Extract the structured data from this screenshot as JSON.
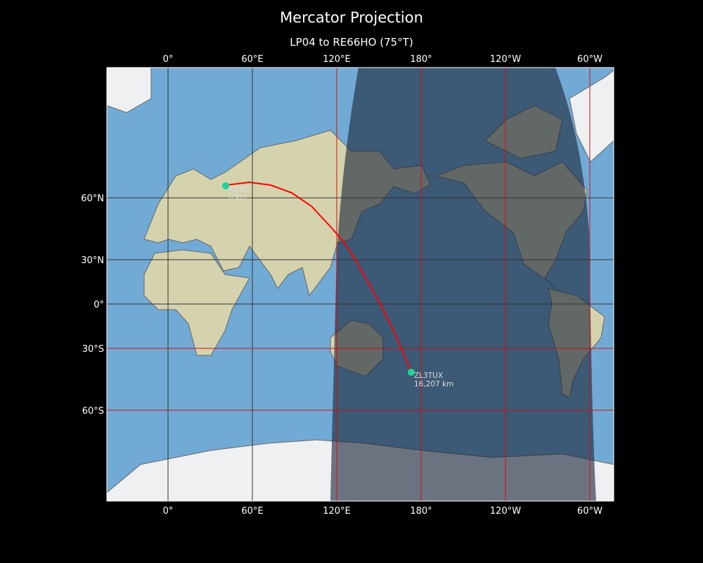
{
  "figure": {
    "title": "Mercator Projection",
    "subtitle": "LP04 to RE66HO (75°T)"
  },
  "map": {
    "projection": "Mercator",
    "central_longitude": 137,
    "longitude_ticks": [
      {
        "lon": 0,
        "label": "0°"
      },
      {
        "lon": 60,
        "label": "60°E"
      },
      {
        "lon": 120,
        "label": "120°E"
      },
      {
        "lon": 180,
        "label": "180°"
      },
      {
        "lon": 240,
        "label": "120°W"
      },
      {
        "lon": 300,
        "label": "60°W"
      }
    ],
    "latitude_ticks": [
      {
        "lat": 60,
        "label": "60°N"
      },
      {
        "lat": 30,
        "label": "30°N"
      },
      {
        "lat": 0,
        "label": "0°"
      },
      {
        "lat": -30,
        "label": "30°S"
      },
      {
        "lat": -60,
        "label": "60°S"
      }
    ],
    "night_shading": true,
    "colors": {
      "path": "#ff0000",
      "station": "#1fd39a",
      "ocean": "#72aad6",
      "grid_day": "#333333",
      "grid_night": "#cc1111"
    },
    "stations": [
      {
        "call": "RZ1O",
        "distance": "0 km",
        "lat": 64.5,
        "lon": 41
      },
      {
        "call": "ZL3TUX",
        "distance": "16,207 km",
        "lat": -43.5,
        "lon": 172.5
      }
    ]
  }
}
